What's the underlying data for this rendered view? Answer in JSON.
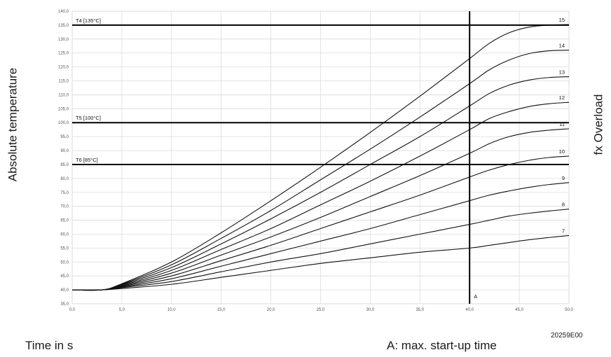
{
  "chart_data": {
    "type": "line",
    "title": "",
    "ylabel": "Absolute temperature",
    "xlabel": "Time in s",
    "right_label": "fx Overload",
    "note": "A: max. start-up time",
    "figure_id": "20259E00",
    "xlim": [
      0,
      50
    ],
    "ylim": [
      35,
      140
    ],
    "x_ticks": [
      0,
      5,
      10,
      15,
      20,
      25,
      30,
      35,
      40,
      45,
      50
    ],
    "x_tick_labels": [
      "0,0",
      "5,0",
      "10,0",
      "15,0",
      "20,0",
      "25,0",
      "30,0",
      "35,0",
      "40,0",
      "45,0",
      "50,0"
    ],
    "y_ticks": [
      35,
      40,
      45,
      50,
      55,
      60,
      65,
      70,
      75,
      80,
      85,
      90,
      95,
      100,
      105,
      110,
      115,
      120,
      125,
      130,
      135,
      140
    ],
    "y_tick_labels": [
      "35,0",
      "40,0",
      "45,0",
      "50,0",
      "55,0",
      "60,0",
      "65,0",
      "70,0",
      "75,0",
      "80,0",
      "85,0",
      "90,0",
      "95,0",
      "100,0",
      "105,0",
      "110,0",
      "115,0",
      "120,0",
      "125,0",
      "130,0",
      "135,0",
      "140,0"
    ],
    "grid": true,
    "reference_lines": [
      {
        "label": "T4 [135°C]",
        "y": 135
      },
      {
        "label": "T5 [100°C]",
        "y": 100
      },
      {
        "label": "T6 [85°C]",
        "y": 85
      }
    ],
    "vertical_marker": {
      "label": "A",
      "x": 40
    },
    "x": [
      0,
      3,
      5,
      10,
      15,
      20,
      25,
      30,
      35,
      40,
      42,
      44,
      46,
      48,
      50
    ],
    "series": [
      {
        "name": "7",
        "values": [
          40,
          40,
          40.5,
          42,
          44.5,
          47,
          49.5,
          51.5,
          53.5,
          55,
          56,
          57,
          58,
          58.8,
          59.5
        ]
      },
      {
        "name": "8",
        "values": [
          40,
          40,
          40.8,
          43,
          46.5,
          50,
          53,
          56.5,
          60,
          63.5,
          65,
          66.5,
          67.5,
          68.3,
          69
        ]
      },
      {
        "name": "9",
        "values": [
          40,
          40,
          41,
          44,
          48.5,
          53,
          57.5,
          62,
          67,
          72,
          74,
          75.5,
          76.8,
          77.8,
          78.5
        ]
      },
      {
        "name": "10",
        "values": [
          40,
          40,
          41.2,
          45,
          50.5,
          56,
          62,
          68,
          74,
          80.5,
          83,
          85,
          86.5,
          87.5,
          88
        ]
      },
      {
        "name": "11",
        "values": [
          40,
          40,
          41.4,
          46,
          52.5,
          59,
          66,
          73.5,
          81,
          89,
          92.5,
          95,
          96.5,
          97.3,
          97.8
        ]
      },
      {
        "name": "12",
        "values": [
          40,
          40,
          41.6,
          47,
          54.5,
          62,
          70.5,
          79,
          88,
          97.5,
          101.5,
          104,
          105.8,
          106.8,
          107.3
        ]
      },
      {
        "name": "13",
        "values": [
          40,
          40,
          41.8,
          48,
          56.5,
          65.5,
          75,
          85,
          95,
          106,
          110.5,
          113.5,
          115.3,
          116.2,
          116.5
        ]
      },
      {
        "name": "14",
        "values": [
          40,
          40,
          42,
          49,
          58.5,
          68.5,
          79.5,
          90.5,
          102,
          114,
          119,
          122.5,
          124.8,
          125.8,
          126
        ]
      },
      {
        "name": "15",
        "values": [
          40,
          40,
          42.2,
          50,
          60.5,
          72,
          84,
          96.5,
          109.5,
          123,
          128.5,
          132.3,
          134.3,
          135,
          135.2
        ]
      }
    ]
  }
}
